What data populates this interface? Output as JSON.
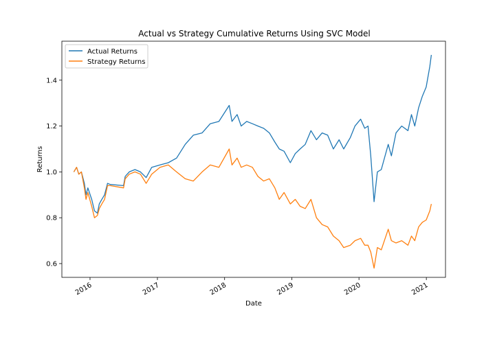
{
  "chart_data": {
    "type": "line",
    "title": "Actual vs Strategy Cumulative Returns Using SVC Model",
    "xlabel": "Date",
    "ylabel": "Returns",
    "xlim": [
      "2015-08-01",
      "2021-04-15"
    ],
    "ylim": [
      0.54,
      1.57
    ],
    "x_ticks": [
      {
        "date": "2016-01-01",
        "label": "2016"
      },
      {
        "date": "2017-01-01",
        "label": "2017"
      },
      {
        "date": "2018-01-01",
        "label": "2018"
      },
      {
        "date": "2019-01-01",
        "label": "2019"
      },
      {
        "date": "2020-01-01",
        "label": "2020"
      },
      {
        "date": "2021-01-01",
        "label": "2021"
      }
    ],
    "y_ticks": [
      0.6,
      0.8,
      1.0,
      1.2,
      1.4
    ],
    "y_tick_labels": [
      "0.6",
      "0.8",
      "1.0",
      "1.2",
      "1.4"
    ],
    "legend_position": "upper-left",
    "grid": false,
    "series": [
      {
        "name": "Actual Returns",
        "color": "#1f77b4",
        "points": [
          [
            "2015-10-05",
            1.0
          ],
          [
            "2015-10-20",
            1.02
          ],
          [
            "2015-11-01",
            0.99
          ],
          [
            "2015-11-15",
            1.0
          ],
          [
            "2015-12-01",
            0.95
          ],
          [
            "2015-12-10",
            0.9
          ],
          [
            "2015-12-20",
            0.93
          ],
          [
            "2016-01-10",
            0.88
          ],
          [
            "2016-01-25",
            0.83
          ],
          [
            "2016-02-10",
            0.82
          ],
          [
            "2016-02-20",
            0.86
          ],
          [
            "2016-03-05",
            0.88
          ],
          [
            "2016-03-20",
            0.9
          ],
          [
            "2016-04-05",
            0.95
          ],
          [
            "2016-04-20",
            0.945
          ],
          [
            "2016-07-01",
            0.94
          ],
          [
            "2016-07-10",
            0.98
          ],
          [
            "2016-08-01",
            1.0
          ],
          [
            "2016-09-01",
            1.01
          ],
          [
            "2016-10-01",
            1.0
          ],
          [
            "2016-11-01",
            0.975
          ],
          [
            "2016-12-01",
            1.02
          ],
          [
            "2017-01-15",
            1.03
          ],
          [
            "2017-03-01",
            1.04
          ],
          [
            "2017-04-15",
            1.06
          ],
          [
            "2017-06-01",
            1.12
          ],
          [
            "2017-07-15",
            1.16
          ],
          [
            "2017-09-01",
            1.17
          ],
          [
            "2017-10-15",
            1.21
          ],
          [
            "2017-12-01",
            1.22
          ],
          [
            "2018-01-26",
            1.29
          ],
          [
            "2018-02-10",
            1.22
          ],
          [
            "2018-03-10",
            1.25
          ],
          [
            "2018-04-01",
            1.2
          ],
          [
            "2018-05-01",
            1.22
          ],
          [
            "2018-06-01",
            1.21
          ],
          [
            "2018-07-01",
            1.2
          ],
          [
            "2018-08-01",
            1.19
          ],
          [
            "2018-09-01",
            1.17
          ],
          [
            "2018-10-01",
            1.13
          ],
          [
            "2018-10-25",
            1.1
          ],
          [
            "2018-11-20",
            1.09
          ],
          [
            "2018-12-24",
            1.04
          ],
          [
            "2019-01-20",
            1.08
          ],
          [
            "2019-02-15",
            1.1
          ],
          [
            "2019-03-15",
            1.12
          ],
          [
            "2019-04-15",
            1.18
          ],
          [
            "2019-05-15",
            1.14
          ],
          [
            "2019-06-15",
            1.17
          ],
          [
            "2019-07-15",
            1.16
          ],
          [
            "2019-08-15",
            1.1
          ],
          [
            "2019-09-15",
            1.14
          ],
          [
            "2019-10-10",
            1.1
          ],
          [
            "2019-11-15",
            1.15
          ],
          [
            "2019-12-10",
            1.2
          ],
          [
            "2020-01-10",
            1.23
          ],
          [
            "2020-02-01",
            1.19
          ],
          [
            "2020-02-19",
            1.2
          ],
          [
            "2020-03-05",
            1.07
          ],
          [
            "2020-03-23",
            0.87
          ],
          [
            "2020-04-10",
            1.0
          ],
          [
            "2020-05-01",
            1.01
          ],
          [
            "2020-06-08",
            1.12
          ],
          [
            "2020-06-25",
            1.07
          ],
          [
            "2020-07-20",
            1.17
          ],
          [
            "2020-08-20",
            1.2
          ],
          [
            "2020-09-23",
            1.18
          ],
          [
            "2020-10-12",
            1.25
          ],
          [
            "2020-10-30",
            1.2
          ],
          [
            "2020-11-20",
            1.28
          ],
          [
            "2020-12-10",
            1.33
          ],
          [
            "2020-12-31",
            1.37
          ],
          [
            "2021-01-20",
            1.46
          ],
          [
            "2021-01-28",
            1.51
          ]
        ]
      },
      {
        "name": "Strategy Returns",
        "color": "#ff7f0e",
        "points": [
          [
            "2015-10-05",
            1.0
          ],
          [
            "2015-10-20",
            1.02
          ],
          [
            "2015-11-01",
            0.99
          ],
          [
            "2015-11-15",
            1.0
          ],
          [
            "2015-12-01",
            0.93
          ],
          [
            "2015-12-10",
            0.88
          ],
          [
            "2015-12-20",
            0.91
          ],
          [
            "2016-01-10",
            0.85
          ],
          [
            "2016-01-25",
            0.8
          ],
          [
            "2016-02-10",
            0.81
          ],
          [
            "2016-02-20",
            0.84
          ],
          [
            "2016-03-05",
            0.86
          ],
          [
            "2016-03-20",
            0.88
          ],
          [
            "2016-04-05",
            0.94
          ],
          [
            "2016-04-20",
            0.94
          ],
          [
            "2016-07-01",
            0.93
          ],
          [
            "2016-07-10",
            0.97
          ],
          [
            "2016-08-01",
            0.99
          ],
          [
            "2016-09-01",
            1.0
          ],
          [
            "2016-10-01",
            0.99
          ],
          [
            "2016-11-01",
            0.95
          ],
          [
            "2016-12-01",
            0.99
          ],
          [
            "2017-01-15",
            1.02
          ],
          [
            "2017-03-01",
            1.03
          ],
          [
            "2017-04-15",
            1.0
          ],
          [
            "2017-06-01",
            0.97
          ],
          [
            "2017-07-15",
            0.96
          ],
          [
            "2017-09-01",
            1.0
          ],
          [
            "2017-10-15",
            1.03
          ],
          [
            "2017-12-01",
            1.02
          ],
          [
            "2018-01-26",
            1.1
          ],
          [
            "2018-02-10",
            1.03
          ],
          [
            "2018-03-10",
            1.06
          ],
          [
            "2018-04-01",
            1.02
          ],
          [
            "2018-05-01",
            1.03
          ],
          [
            "2018-06-01",
            1.02
          ],
          [
            "2018-07-01",
            0.98
          ],
          [
            "2018-08-01",
            0.96
          ],
          [
            "2018-09-01",
            0.97
          ],
          [
            "2018-10-01",
            0.93
          ],
          [
            "2018-10-25",
            0.88
          ],
          [
            "2018-11-20",
            0.91
          ],
          [
            "2018-12-24",
            0.86
          ],
          [
            "2019-01-20",
            0.88
          ],
          [
            "2019-02-15",
            0.85
          ],
          [
            "2019-03-15",
            0.84
          ],
          [
            "2019-04-15",
            0.88
          ],
          [
            "2019-05-15",
            0.8
          ],
          [
            "2019-06-15",
            0.77
          ],
          [
            "2019-07-15",
            0.76
          ],
          [
            "2019-08-15",
            0.72
          ],
          [
            "2019-09-15",
            0.7
          ],
          [
            "2019-10-10",
            0.67
          ],
          [
            "2019-11-15",
            0.68
          ],
          [
            "2019-12-10",
            0.7
          ],
          [
            "2020-01-10",
            0.71
          ],
          [
            "2020-02-01",
            0.68
          ],
          [
            "2020-02-19",
            0.68
          ],
          [
            "2020-03-05",
            0.65
          ],
          [
            "2020-03-23",
            0.58
          ],
          [
            "2020-04-10",
            0.67
          ],
          [
            "2020-05-01",
            0.66
          ],
          [
            "2020-06-08",
            0.75
          ],
          [
            "2020-06-25",
            0.7
          ],
          [
            "2020-07-20",
            0.69
          ],
          [
            "2020-08-20",
            0.7
          ],
          [
            "2020-09-23",
            0.68
          ],
          [
            "2020-10-12",
            0.72
          ],
          [
            "2020-10-30",
            0.7
          ],
          [
            "2020-11-20",
            0.76
          ],
          [
            "2020-12-10",
            0.78
          ],
          [
            "2020-12-31",
            0.79
          ],
          [
            "2021-01-20",
            0.83
          ],
          [
            "2021-01-28",
            0.86
          ]
        ]
      }
    ]
  }
}
